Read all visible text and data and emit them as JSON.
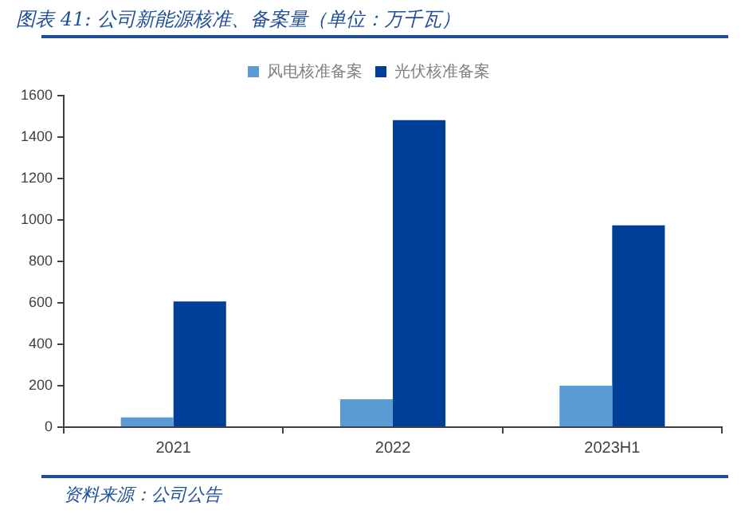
{
  "chart_data": {
    "type": "bar",
    "title": "图表 41: 公司新能源核准、备案量（单位：万千瓦）",
    "categories": [
      "2021",
      "2022",
      "2023H1"
    ],
    "series": [
      {
        "name": "风电核准备案",
        "color": "#5b9bd5",
        "values": [
          47,
          135,
          200
        ]
      },
      {
        "name": "光伏核准备案",
        "color": "#003f98",
        "values": [
          607,
          1482,
          974
        ]
      }
    ],
    "ylim": [
      0,
      1600
    ],
    "yticks": [
      0,
      200,
      400,
      600,
      800,
      1000,
      1200,
      1400,
      1600
    ],
    "grid": false,
    "legend": "top",
    "annotations": [
      "资料来源：公司公告"
    ]
  }
}
